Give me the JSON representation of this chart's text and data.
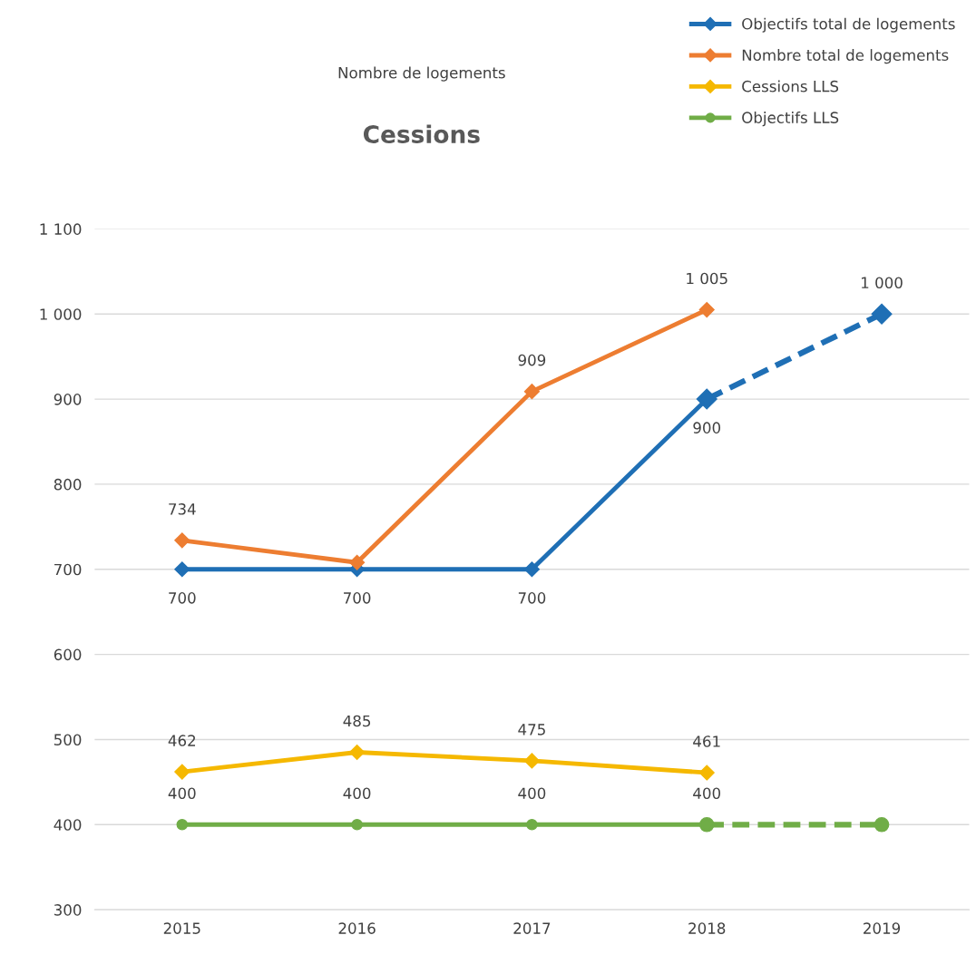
{
  "chart_data": {
    "type": "line",
    "title": "Cessions",
    "subtitle": "Nombre de logements",
    "categories": [
      "2015",
      "2016",
      "2017",
      "2018",
      "2019"
    ],
    "series": [
      {
        "name": "Objectifs total de logements",
        "color": "#1f6fb5",
        "values": [
          700,
          700,
          700,
          900,
          null
        ],
        "value_labels": [
          "700",
          "700",
          "700",
          "900",
          null
        ],
        "marker": "diamond",
        "line_style": "solid"
      },
      {
        "color": "#1f6fb5",
        "values": [
          null,
          null,
          null,
          900,
          1000
        ],
        "value_labels": [
          null,
          null,
          null,
          null,
          "1 000"
        ],
        "marker": "diamond",
        "line_style": "dashed"
      },
      {
        "name": "Nombre total de logements",
        "color": "#ed7d31",
        "values": [
          734,
          708,
          909,
          1005,
          null
        ],
        "value_labels": [
          "734",
          null,
          "909",
          "1 005",
          null
        ],
        "marker": "diamond",
        "line_style": "solid"
      },
      {
        "name": "Cessions LLS",
        "color": "#f5b800",
        "values": [
          462,
          485,
          475,
          461,
          null
        ],
        "value_labels": [
          "462",
          "485",
          "475",
          "461",
          null
        ],
        "marker": "diamond",
        "line_style": "solid"
      },
      {
        "name": "Objectifs LLS",
        "color": "#70ad47",
        "values": [
          400,
          400,
          400,
          400,
          null
        ],
        "value_labels": [
          "400",
          "400",
          "400",
          "400",
          null
        ],
        "marker": "circle",
        "line_style": "solid"
      },
      {
        "color": "#70ad47",
        "values": [
          null,
          null,
          null,
          400,
          400
        ],
        "value_labels": [
          null,
          null,
          null,
          null,
          null
        ],
        "marker": "circle",
        "line_style": "dashed"
      }
    ],
    "ylim": [
      300,
      1100
    ],
    "yticks": [
      300,
      400,
      500,
      600,
      700,
      800,
      900,
      {
        "value": 1000,
        "label": "1 000"
      },
      {
        "value": 1100,
        "label": "1 100"
      }
    ],
    "grid": "y",
    "legend": "top right"
  }
}
